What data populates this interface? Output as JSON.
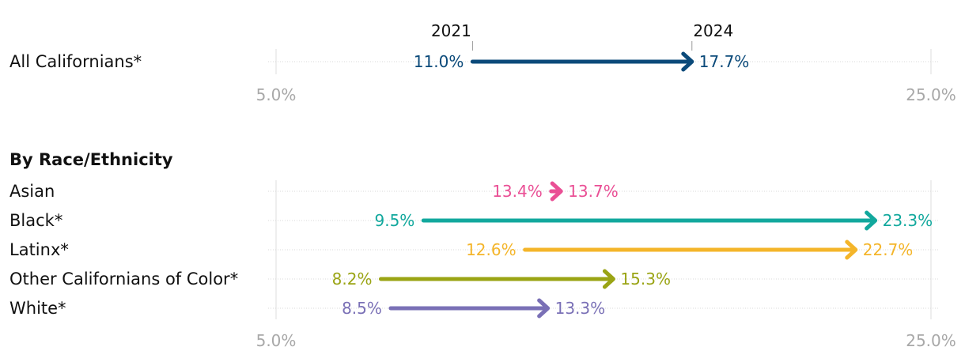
{
  "chart_data": {
    "type": "dumbbell-arrow",
    "years": {
      "start": "2021",
      "end": "2024"
    },
    "xlim": [
      5.0,
      25.0
    ],
    "ticks": [
      {
        "value": 5.0,
        "label": "5.0%"
      },
      {
        "value": 25.0,
        "label": "25.0%"
      }
    ],
    "top_panel": {
      "rows": [
        {
          "label": "All Californians*",
          "start": 11.0,
          "end": 17.7,
          "start_label": "11.0%",
          "end_label": "17.7%",
          "color": "#0b4a7a"
        }
      ]
    },
    "bottom_panel": {
      "title": "By Race/Ethnicity",
      "rows": [
        {
          "label": "Asian",
          "start": 13.4,
          "end": 13.7,
          "start_label": "13.4%",
          "end_label": "13.7%",
          "color": "#ea4f95"
        },
        {
          "label": "Black*",
          "start": 9.5,
          "end": 23.3,
          "start_label": "9.5%",
          "end_label": "23.3%",
          "color": "#12a89d"
        },
        {
          "label": "Latinx*",
          "start": 12.6,
          "end": 22.7,
          "start_label": "12.6%",
          "end_label": "22.7%",
          "color": "#f4b52a"
        },
        {
          "label": "Other Californians of Color*",
          "start": 8.2,
          "end": 15.3,
          "start_label": "8.2%",
          "end_label": "15.3%",
          "color": "#9aa414"
        },
        {
          "label": "White*",
          "start": 8.5,
          "end": 13.3,
          "start_label": "8.5%",
          "end_label": "13.3%",
          "color": "#7a70b6"
        }
      ]
    }
  }
}
